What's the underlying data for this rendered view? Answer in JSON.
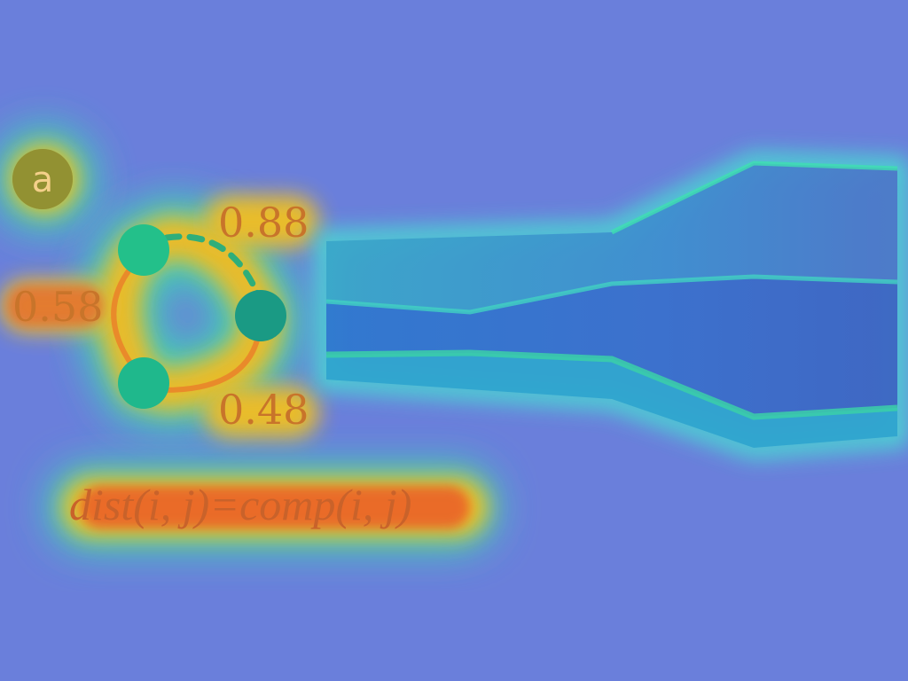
{
  "panel": {
    "letter": "a"
  },
  "graph": {
    "edges": [
      {
        "id": "top-right",
        "weight": "0.88",
        "style": "dashed"
      },
      {
        "id": "left",
        "weight": "0.58",
        "style": "solid"
      },
      {
        "id": "bottom-right",
        "weight": "0.48",
        "style": "solid"
      }
    ]
  },
  "formula": "dist(i, j)=comp(i, j)",
  "colors": {
    "background": "#6a7fdb",
    "hot": "#e8502a",
    "warm": "#f0c020",
    "cool": "#3ed6b0",
    "node": "#1fb88c",
    "edge": "#e98a2a",
    "text": "#c96a2a"
  }
}
